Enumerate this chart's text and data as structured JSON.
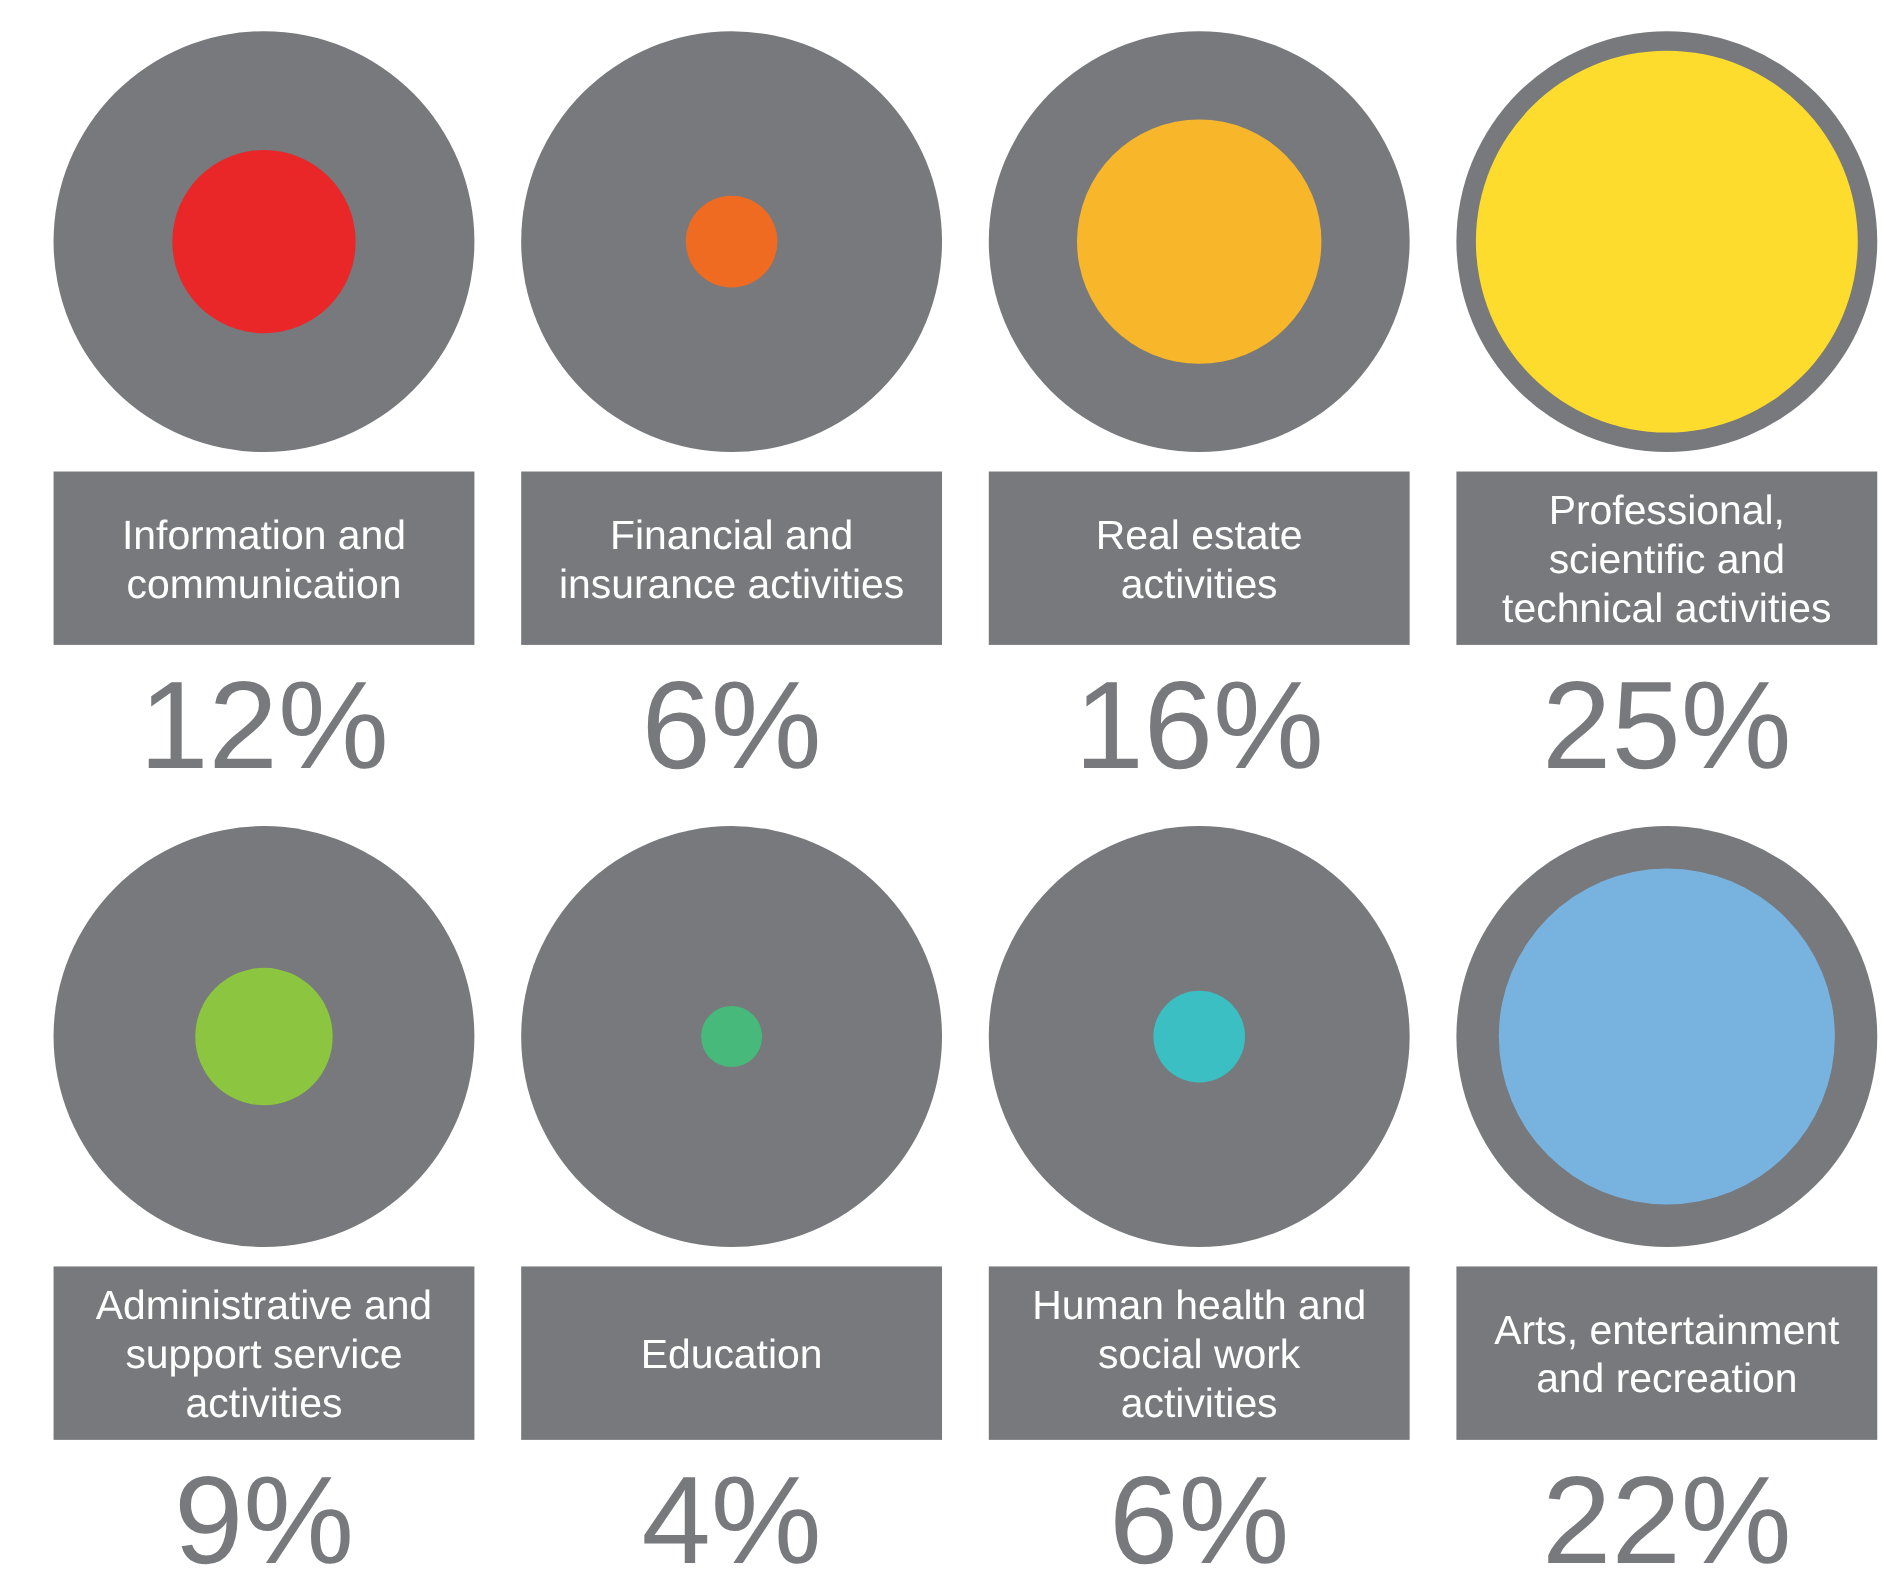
{
  "chart_data": {
    "type": "other",
    "categories": [
      "Information and communication",
      "Financial and insurance activities",
      "Real estate activities",
      "Professional, scientific and technical activities",
      "Administrative and support service activities",
      "Education",
      "Human health and social work activities",
      "Arts, entertainment and recreation"
    ],
    "values": [
      12,
      6,
      16,
      25,
      9,
      4,
      6,
      22
    ],
    "colors": [
      "#e92628",
      "#f06b22",
      "#f8b62a",
      "#fddc2e",
      "#8cc540",
      "#47b97b",
      "#3cbfc3",
      "#78b3e0"
    ],
    "value_labels": [
      "12%",
      "6%",
      "16%",
      "25%",
      "9%",
      "4%",
      "6%",
      "22%"
    ]
  }
}
